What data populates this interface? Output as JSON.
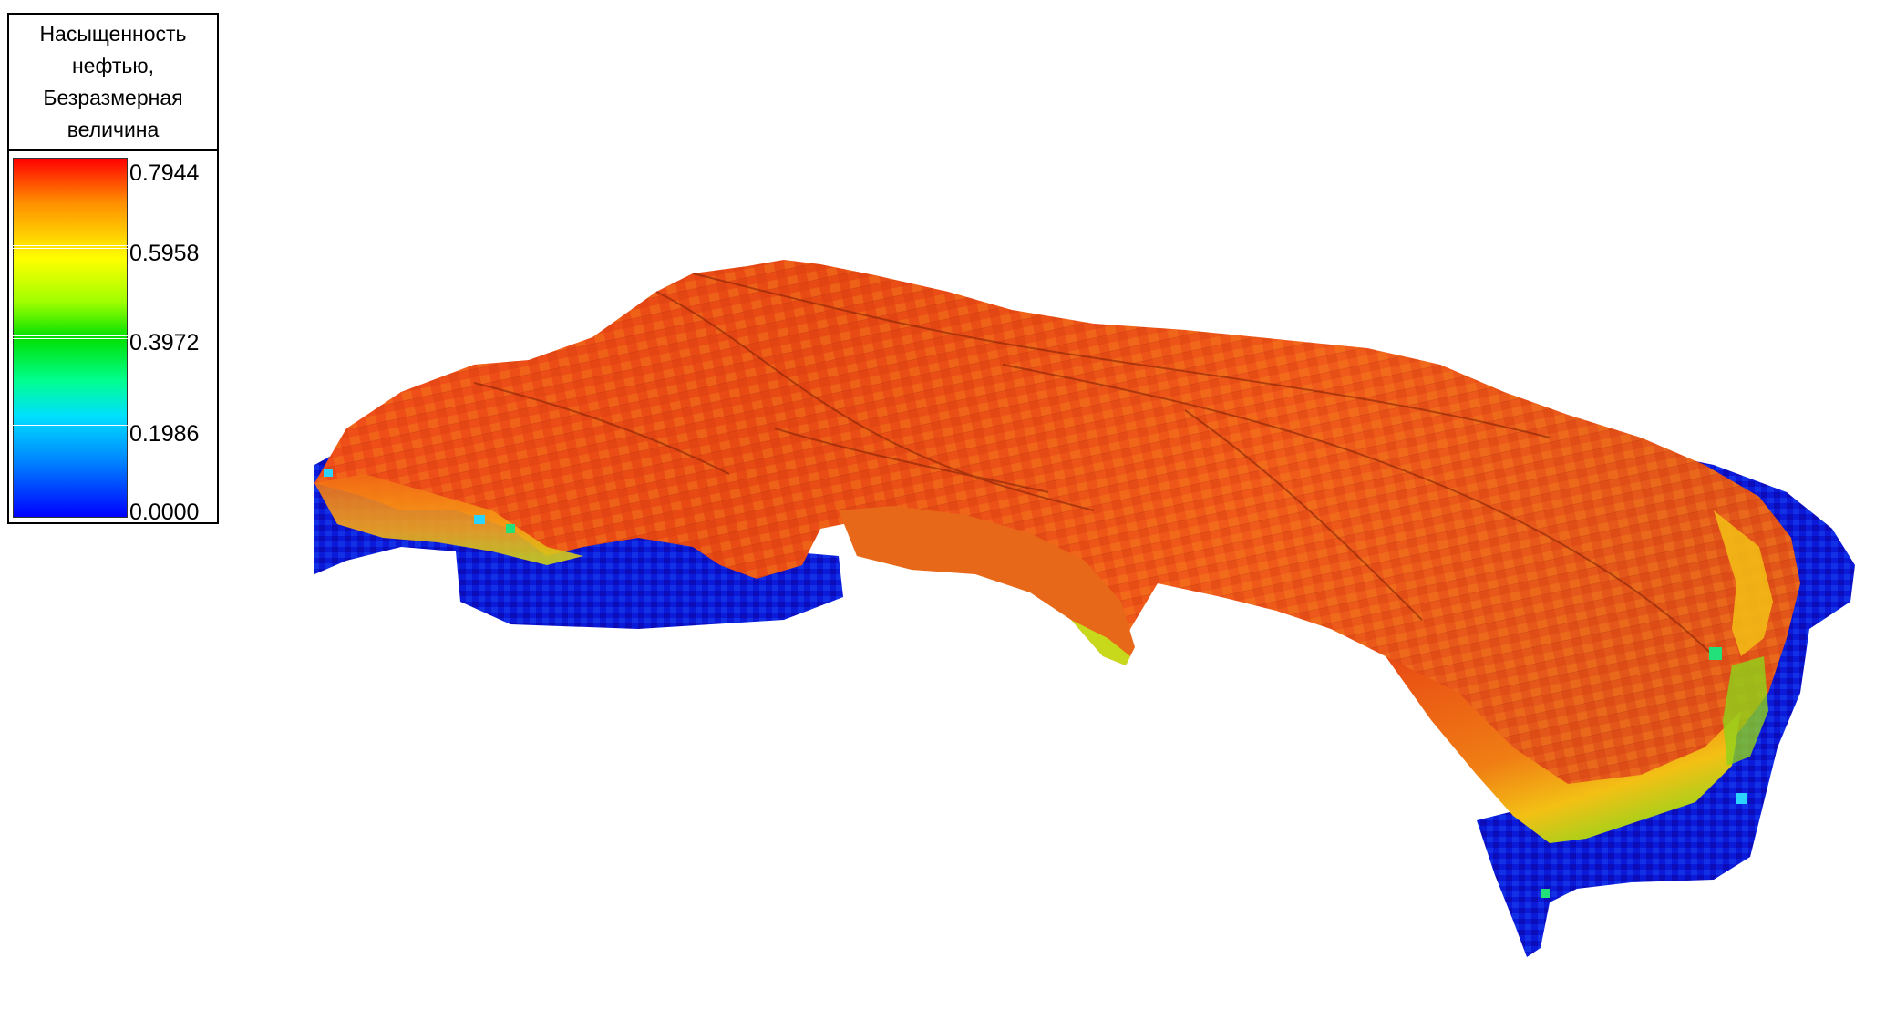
{
  "legend": {
    "title_lines": [
      "Насыщенность",
      "нефтью,",
      "Безразмерная",
      "величина"
    ],
    "ticks": [
      "0.7944",
      "0.5958",
      "0.3972",
      "0.1986",
      "0.0000"
    ],
    "min": 0.0,
    "max": 0.7944
  },
  "colors": {
    "background": "#ffffff",
    "high": "#ff0000",
    "upper_mid": "#ffff00",
    "mid": "#00e000",
    "lower_mid": "#00e0ff",
    "low": "#0000ff"
  },
  "view": {
    "object": "3d-reservoir-model"
  }
}
